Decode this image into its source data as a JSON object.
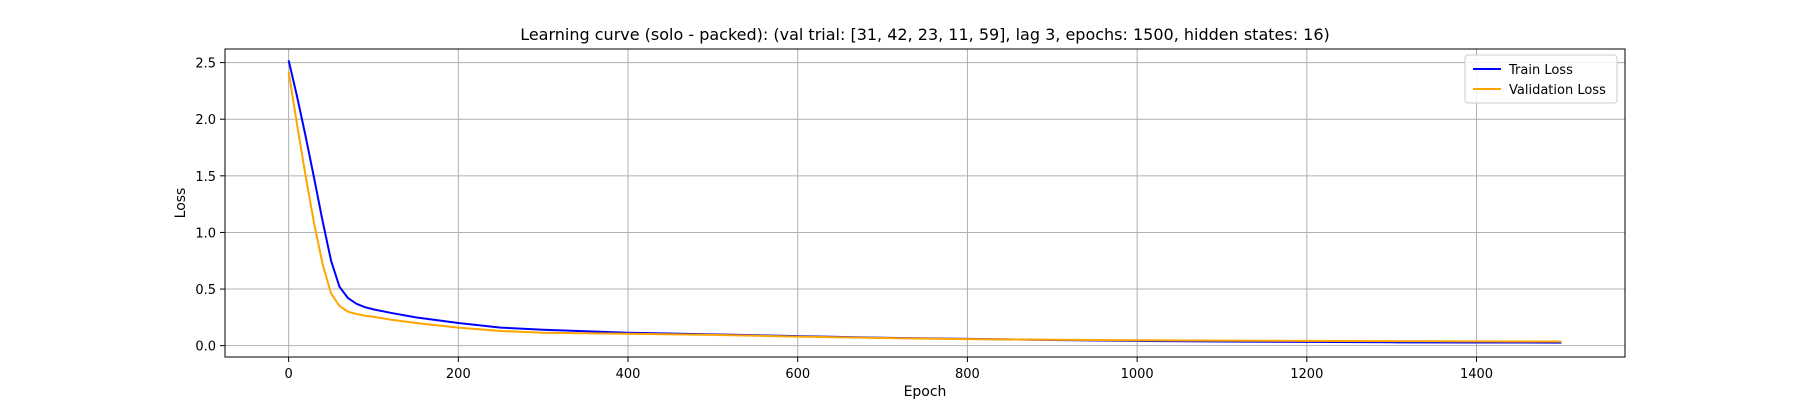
{
  "chart_data": {
    "type": "line",
    "title": "Learning curve (solo - packed): (val trial: [31, 42, 23, 11, 59], lag 3, epochs: 1500, hidden states: 16)",
    "xlabel": "Epoch",
    "ylabel": "Loss",
    "xlim": [
      -75,
      1575
    ],
    "ylim": [
      -0.1,
      2.62
    ],
    "xticks": [
      0,
      200,
      400,
      600,
      800,
      1000,
      1200,
      1400
    ],
    "xtick_labels": [
      "0",
      "200",
      "400",
      "600",
      "800",
      "1000",
      "1200",
      "1400"
    ],
    "yticks": [
      0.0,
      0.5,
      1.0,
      1.5,
      2.0,
      2.5
    ],
    "ytick_labels": [
      "0.0",
      "0.5",
      "1.0",
      "1.5",
      "2.0",
      "2.5"
    ],
    "grid": true,
    "legend_position": "top-right",
    "series": [
      {
        "name": "Train Loss",
        "color": "#0000ff",
        "x": [
          0,
          10,
          20,
          30,
          40,
          50,
          60,
          70,
          80,
          90,
          100,
          120,
          150,
          200,
          250,
          300,
          400,
          500,
          600,
          700,
          800,
          900,
          1000,
          1100,
          1200,
          1300,
          1400,
          1500
        ],
        "y": [
          2.52,
          2.2,
          1.85,
          1.48,
          1.1,
          0.75,
          0.52,
          0.42,
          0.37,
          0.34,
          0.32,
          0.29,
          0.25,
          0.2,
          0.16,
          0.14,
          0.115,
          0.1,
          0.085,
          0.07,
          0.06,
          0.05,
          0.042,
          0.037,
          0.033,
          0.03,
          0.028,
          0.027
        ]
      },
      {
        "name": "Validation Loss",
        "color": "#ffa500",
        "x": [
          0,
          10,
          20,
          30,
          40,
          50,
          60,
          70,
          80,
          90,
          100,
          120,
          150,
          200,
          250,
          300,
          400,
          500,
          600,
          700,
          800,
          900,
          1000,
          1100,
          1200,
          1300,
          1400,
          1500
        ],
        "y": [
          2.42,
          1.95,
          1.5,
          1.08,
          0.72,
          0.46,
          0.35,
          0.3,
          0.28,
          0.265,
          0.255,
          0.23,
          0.2,
          0.16,
          0.13,
          0.115,
          0.105,
          0.095,
          0.08,
          0.068,
          0.058,
          0.052,
          0.048,
          0.045,
          0.042,
          0.04,
          0.038,
          0.037
        ]
      }
    ]
  }
}
